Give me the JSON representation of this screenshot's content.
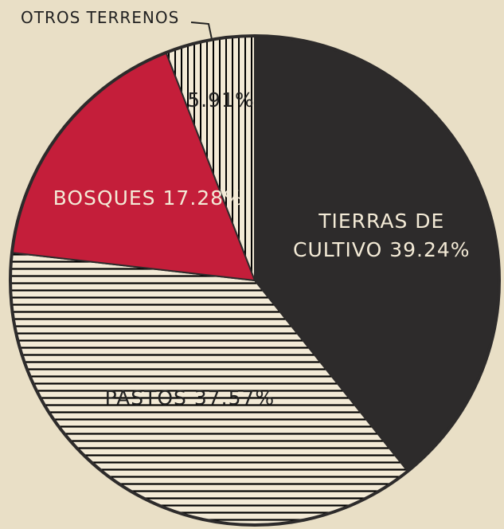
{
  "chart_data": {
    "type": "pie",
    "categories": [
      "TIERRAS DE CULTIVO",
      "PASTOS",
      "BOSQUES",
      "OTROS TERRENOS"
    ],
    "values": [
      39.24,
      37.57,
      17.28,
      5.91
    ],
    "value_labels": [
      "39.24%",
      "37.57%",
      "17.28%",
      "5.91%"
    ],
    "colors": [
      "#2d2b2b",
      "#2d2b2b",
      "#c41e3a",
      "#c41e3a"
    ],
    "hatch": [
      "none",
      "horizontal",
      "none",
      "vertical"
    ]
  }
}
